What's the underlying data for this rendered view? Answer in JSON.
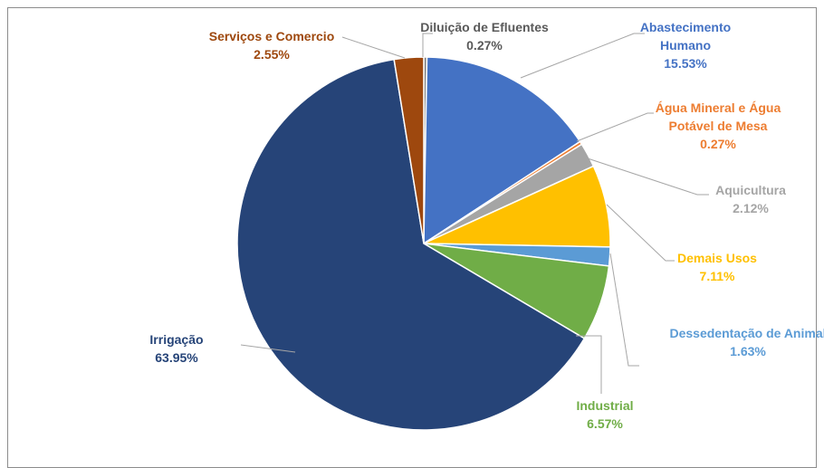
{
  "chart_data": {
    "type": "pie",
    "slices": [
      {
        "label": [
          "Diluição de Efluentes"
        ],
        "value_label": "0.27%",
        "value": 0.27,
        "color": "#7f7f7f",
        "text_color": "#595959"
      },
      {
        "label": [
          "Abastecimento",
          "Humano"
        ],
        "value_label": "15.53%",
        "value": 15.53,
        "color": "#4472c4",
        "text_color": "#4472c4"
      },
      {
        "label": [
          "Água Mineral e Água",
          "Potável de Mesa"
        ],
        "value_label": "0.27%",
        "value": 0.27,
        "color": "#ed7d31",
        "text_color": "#ed7d31"
      },
      {
        "label": [
          "Aquicultura"
        ],
        "value_label": "2.12%",
        "value": 2.12,
        "color": "#a5a5a5",
        "text_color": "#a5a5a5"
      },
      {
        "label": [
          "Demais Usos"
        ],
        "value_label": "7.11%",
        "value": 7.11,
        "color": "#ffc000",
        "text_color": "#ffc000"
      },
      {
        "label": [
          "Dessedentação de Animal"
        ],
        "value_label": "1.63%",
        "value": 1.63,
        "color": "#5b9bd5",
        "text_color": "#5b9bd5"
      },
      {
        "label": [
          "Industrial"
        ],
        "value_label": "6.57%",
        "value": 6.57,
        "color": "#70ad47",
        "text_color": "#70ad47"
      },
      {
        "label": [
          "Irrigação"
        ],
        "value_label": "63.95%",
        "value": 63.95,
        "color": "#264478",
        "text_color": "#264478"
      },
      {
        "label": [
          "Serviços e Comercio"
        ],
        "value_label": "2.55%",
        "value": 2.55,
        "color": "#9e480e",
        "text_color": "#9e480e"
      }
    ],
    "legend": "none",
    "title": ""
  }
}
